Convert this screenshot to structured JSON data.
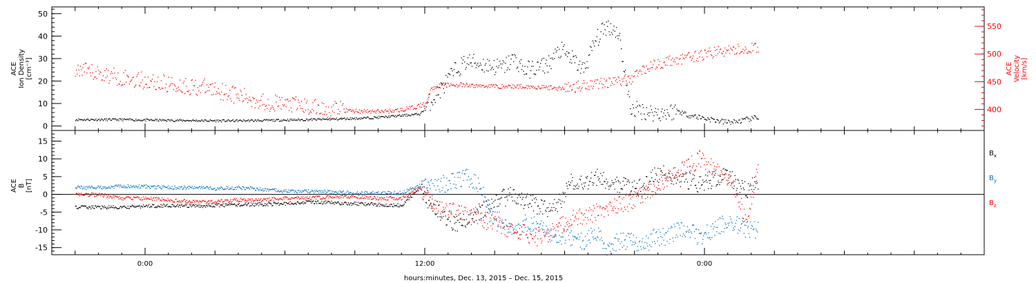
{
  "chart_data": [
    {
      "type": "scatter",
      "panel": "plasma",
      "ylabel_lines": [
        "ACE",
        "Ion Density",
        "[cm⁻³]"
      ],
      "y2label_lines": [
        "ACE",
        "Velocity",
        "[km/s]"
      ],
      "ylim": [
        -2,
        53
      ],
      "yticks": [
        0,
        10,
        20,
        30,
        40,
        50
      ],
      "y2lim": [
        362,
        585
      ],
      "y2ticks": [
        400,
        450,
        500,
        550
      ],
      "colors": {
        "density": "#000000",
        "velocity": "#ff0000"
      },
      "series": [
        {
          "key": "density",
          "axis": "left",
          "color": "#000000",
          "x": [
            -3,
            -2,
            -1,
            0,
            1,
            2,
            3,
            4,
            5,
            6,
            7,
            8,
            9,
            10,
            11,
            11.8,
            12.3,
            12.8,
            13.3,
            13.8,
            14.3,
            14.8,
            15.3,
            15.8,
            16.3,
            16.8,
            17.3,
            17.8,
            18.3,
            18.8,
            19.3,
            19.8,
            20.3,
            20.8,
            21.3,
            21.8,
            22.3,
            22.8,
            23.3,
            23.8,
            24.3,
            24.8,
            25.3,
            25.8,
            26.3
          ],
          "y": [
            3,
            3,
            3,
            2.8,
            2.7,
            2.6,
            2.5,
            2.5,
            2.6,
            2.8,
            3,
            3.2,
            3.5,
            4,
            4.8,
            5.5,
            12,
            18,
            25,
            29,
            28,
            27,
            26,
            30,
            25,
            26,
            28,
            34,
            30,
            25,
            38,
            45,
            42,
            8,
            7,
            6,
            6,
            7,
            5,
            4,
            3,
            2,
            2,
            3,
            4
          ]
        },
        {
          "key": "velocity",
          "axis": "right",
          "color": "#ff0000",
          "x": [
            -3,
            -2.5,
            -2,
            -1.5,
            -1,
            -0.5,
            0,
            0.5,
            1,
            1.5,
            2,
            2.5,
            3,
            3.5,
            4,
            4.5,
            5,
            5.5,
            6,
            6.5,
            7,
            7.5,
            8,
            8.5,
            9,
            9.5,
            10,
            10.5,
            11,
            11.5,
            12,
            12.3,
            12.8,
            13.3,
            13.8,
            14.3,
            14.8,
            15.3,
            15.8,
            16.3,
            16.8,
            17.3,
            17.8,
            18.3,
            18.8,
            19.3,
            19.8,
            20.3,
            20.8,
            21.3,
            21.8,
            22.3,
            22.8,
            23.3,
            23.8,
            24.3,
            24.8,
            25.3,
            25.8,
            26.3
          ],
          "y": [
            470,
            468,
            465,
            462,
            458,
            455,
            452,
            449,
            446,
            444,
            442,
            440,
            437,
            432,
            425,
            420,
            415,
            412,
            410,
            408,
            405,
            402,
            400,
            399,
            398,
            397,
            397,
            398,
            400,
            404,
            410,
            440,
            445,
            445,
            444,
            443,
            443,
            442,
            442,
            442,
            441,
            440,
            439,
            440,
            445,
            448,
            450,
            452,
            455,
            472,
            480,
            486,
            490,
            494,
            498,
            503,
            506,
            508,
            510,
            512
          ]
        }
      ]
    },
    {
      "type": "scatter",
      "panel": "magnetic-field",
      "ylabel_lines": [
        "ACE",
        "B",
        "[nT]"
      ],
      "ylim": [
        -17,
        18
      ],
      "yticks": [
        -15,
        -10,
        -5,
        0,
        5,
        10,
        15
      ],
      "zero_line": true,
      "legend": [
        "B",
        "B",
        "B"
      ],
      "legend_subs": [
        "x",
        "y",
        "z"
      ],
      "series": [
        {
          "key": "Bx",
          "color": "#000000",
          "x": [
            -3,
            -2,
            -1,
            0,
            1,
            2,
            3,
            4,
            5,
            6,
            7,
            8,
            9,
            10,
            11,
            11.8,
            12.3,
            12.8,
            13.3,
            13.8,
            14.3,
            14.8,
            15.3,
            15.8,
            16.3,
            16.8,
            17.3,
            17.8,
            18.3,
            18.8,
            19.3,
            19.8,
            20.3,
            20.8,
            21.3,
            21.8,
            22.3,
            22.8,
            23.3,
            23.8,
            24.3,
            24.8,
            25.3,
            25.8,
            26.3
          ],
          "y": [
            -3.5,
            -3.5,
            -3.6,
            -3.2,
            -3,
            -3.2,
            -3,
            -2.8,
            -2.7,
            -2.5,
            -2,
            -2.3,
            -2.5,
            -2.8,
            -3,
            2,
            -3,
            -6,
            -8,
            -7,
            -5,
            -3,
            -1,
            0,
            -2,
            -3,
            -4,
            -2,
            4,
            3,
            5,
            4,
            3,
            2,
            2,
            5,
            6,
            5,
            4,
            3,
            4,
            5,
            4,
            1,
            4
          ]
        },
        {
          "key": "By",
          "color": "#0070c0",
          "x": [
            -3,
            -2,
            -1,
            0,
            1,
            2,
            3,
            4,
            5,
            6,
            7,
            8,
            9,
            10,
            11,
            11.8,
            12.3,
            12.8,
            13.3,
            13.8,
            14.3,
            14.8,
            15.3,
            15.8,
            16.3,
            16.8,
            17.3,
            17.8,
            18.3,
            18.8,
            19.3,
            19.8,
            20.3,
            20.8,
            21.3,
            21.8,
            22.3,
            22.8,
            23.3,
            23.8,
            24.3,
            24.8,
            25.3,
            25.8,
            26.3
          ],
          "y": [
            2,
            2,
            2.5,
            2.3,
            2,
            2,
            1.8,
            2,
            1.5,
            1,
            1,
            0.8,
            0.5,
            0.5,
            0.5,
            2.8,
            2,
            3,
            4,
            5,
            3,
            -5,
            -8,
            -10,
            -8,
            -9,
            -11,
            -12,
            -12,
            -13,
            -10,
            -15,
            -13,
            -13,
            -15,
            -12,
            -12,
            -10,
            -10,
            -12,
            -10,
            -8,
            -8,
            -10,
            -10
          ]
        },
        {
          "key": "Bz",
          "color": "#ff0000",
          "x": [
            -3,
            -2,
            -1,
            0,
            1,
            2,
            3,
            4,
            5,
            6,
            7,
            8,
            9,
            10,
            11,
            11.8,
            12.3,
            12.8,
            13.3,
            13.8,
            14.3,
            14.8,
            15.3,
            15.8,
            16.3,
            16.8,
            17.3,
            17.8,
            18.3,
            18.8,
            19.3,
            19.8,
            20.3,
            20.8,
            21.3,
            21.8,
            22.3,
            22.8,
            23.3,
            23.8,
            24.3,
            24.8,
            25.3,
            25.8,
            26.3
          ],
          "y": [
            0,
            0,
            -1,
            -1,
            -1.5,
            -2,
            -2,
            -1.5,
            -1.5,
            -1,
            -1,
            -0.5,
            -0.5,
            -1,
            -1,
            2,
            -3,
            -4,
            -5,
            -6,
            -6,
            -8,
            -9,
            -10,
            -11,
            -12,
            -11,
            -9,
            -7,
            -6,
            -5,
            -4,
            -3,
            -2,
            0,
            2,
            4,
            6,
            8,
            10,
            8,
            5,
            2,
            -8,
            10
          ]
        }
      ]
    }
  ],
  "xaxis": {
    "xlim": [
      -4,
      36
    ],
    "ticks": [
      0,
      12,
      24
    ],
    "tick_labels": [
      "0:00",
      "12:00",
      "0:00"
    ],
    "data_end": 26.3,
    "xlabel": "hours:minutes, Dec. 13, 2015 – Dec. 15, 2015"
  }
}
